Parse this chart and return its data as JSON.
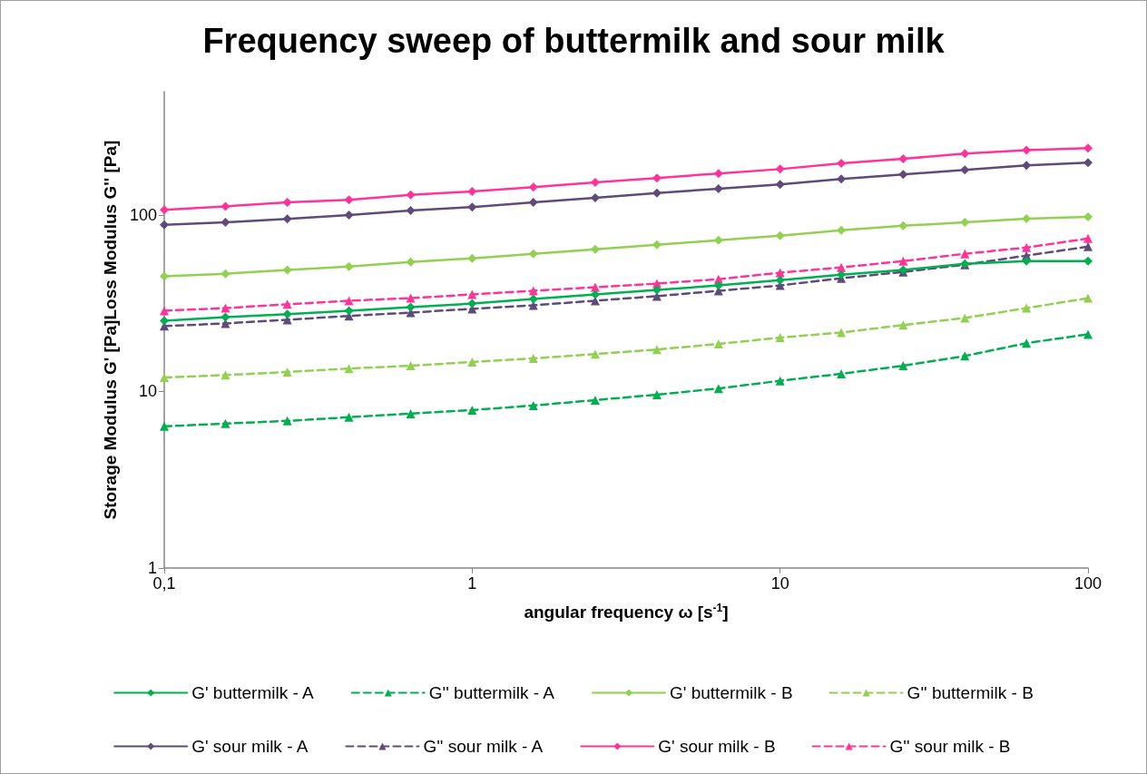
{
  "chart_data": {
    "type": "line",
    "title": "Frequency sweep of buttermilk and sour milk",
    "xlabel": "angular frequency ω [s$^{-1}$]",
    "ylabel": "Storage Modulus G' [Pa]Loss Modulus G'' [Pa]",
    "x": [
      0.1,
      0.158,
      0.251,
      0.398,
      0.631,
      1,
      1.58,
      2.51,
      3.98,
      6.31,
      10,
      15.8,
      25.1,
      39.8,
      63.1,
      100
    ],
    "log": "xy",
    "xlim": [
      0.1,
      100
    ],
    "xticks": [
      {
        "value": 0.1,
        "label": "0,1"
      },
      1,
      10,
      100
    ],
    "ylim": [
      1,
      500
    ],
    "yticks": [
      1,
      10,
      100
    ],
    "grid": false,
    "legend": "bottom",
    "series": [
      {
        "name": "G' buttermilk - A",
        "color": "#00b050",
        "marker": "diamond",
        "line_style": "solid",
        "values": [
          25.2,
          26.4,
          27.4,
          28.7,
          30.1,
          31.5,
          33.4,
          35.5,
          37.6,
          39.9,
          42.8,
          45.9,
          48.8,
          52.9,
          54.8,
          54.8
        ]
      },
      {
        "name": "G'' buttermilk - A",
        "color": "#00b050",
        "marker": "triangle",
        "line_style": "dashed",
        "values": [
          6.35,
          6.58,
          6.82,
          7.15,
          7.49,
          7.85,
          8.33,
          8.94,
          9.6,
          10.4,
          11.5,
          12.6,
          14,
          15.9,
          18.8,
          21.1
        ]
      },
      {
        "name": "G' buttermilk - B",
        "color": "#92d050",
        "marker": "diamond",
        "line_style": "solid",
        "values": [
          44.9,
          46.5,
          48.8,
          51.1,
          54.2,
          56.8,
          60.3,
          63.9,
          67.8,
          71.9,
          76.3,
          81.9,
          86.9,
          91,
          95.4,
          97.7
        ]
      },
      {
        "name": "G'' buttermilk - B",
        "color": "#92d050",
        "marker": "triangle",
        "line_style": "dashed",
        "values": [
          12,
          12.4,
          12.9,
          13.5,
          14,
          14.7,
          15.4,
          16.3,
          17.3,
          18.6,
          20.2,
          21.6,
          23.8,
          26.1,
          29.7,
          33.8
        ]
      },
      {
        "name": "G' sour milk - A",
        "color": "#604a7b",
        "marker": "diamond",
        "line_style": "solid",
        "values": [
          88,
          91,
          95,
          100,
          106,
          111,
          118,
          125,
          133,
          141,
          149,
          160,
          170,
          180,
          191,
          198
        ]
      },
      {
        "name": "G'' sour milk - A",
        "color": "#604a7b",
        "marker": "triangle",
        "line_style": "dashed",
        "values": [
          23.5,
          24.3,
          25.5,
          26.8,
          28,
          29.4,
          30.8,
          32.7,
          34.7,
          37.2,
          39.9,
          43.8,
          47.6,
          52.3,
          58.9,
          66.2
        ]
      },
      {
        "name": "G' sour milk - B",
        "color": "#ff3399",
        "marker": "diamond",
        "line_style": "solid",
        "values": [
          107,
          112,
          118,
          122,
          130,
          136,
          144,
          153,
          162,
          172,
          182,
          196,
          208,
          223,
          233,
          239
        ]
      },
      {
        "name": "G'' sour milk - B",
        "color": "#ff3399",
        "marker": "triangle",
        "line_style": "dashed",
        "values": [
          28.7,
          29.7,
          31.2,
          32.7,
          33.8,
          35.5,
          37.2,
          39,
          40.9,
          43.3,
          47.1,
          50.5,
          54.8,
          60.3,
          65.4,
          73.6
        ]
      }
    ]
  }
}
